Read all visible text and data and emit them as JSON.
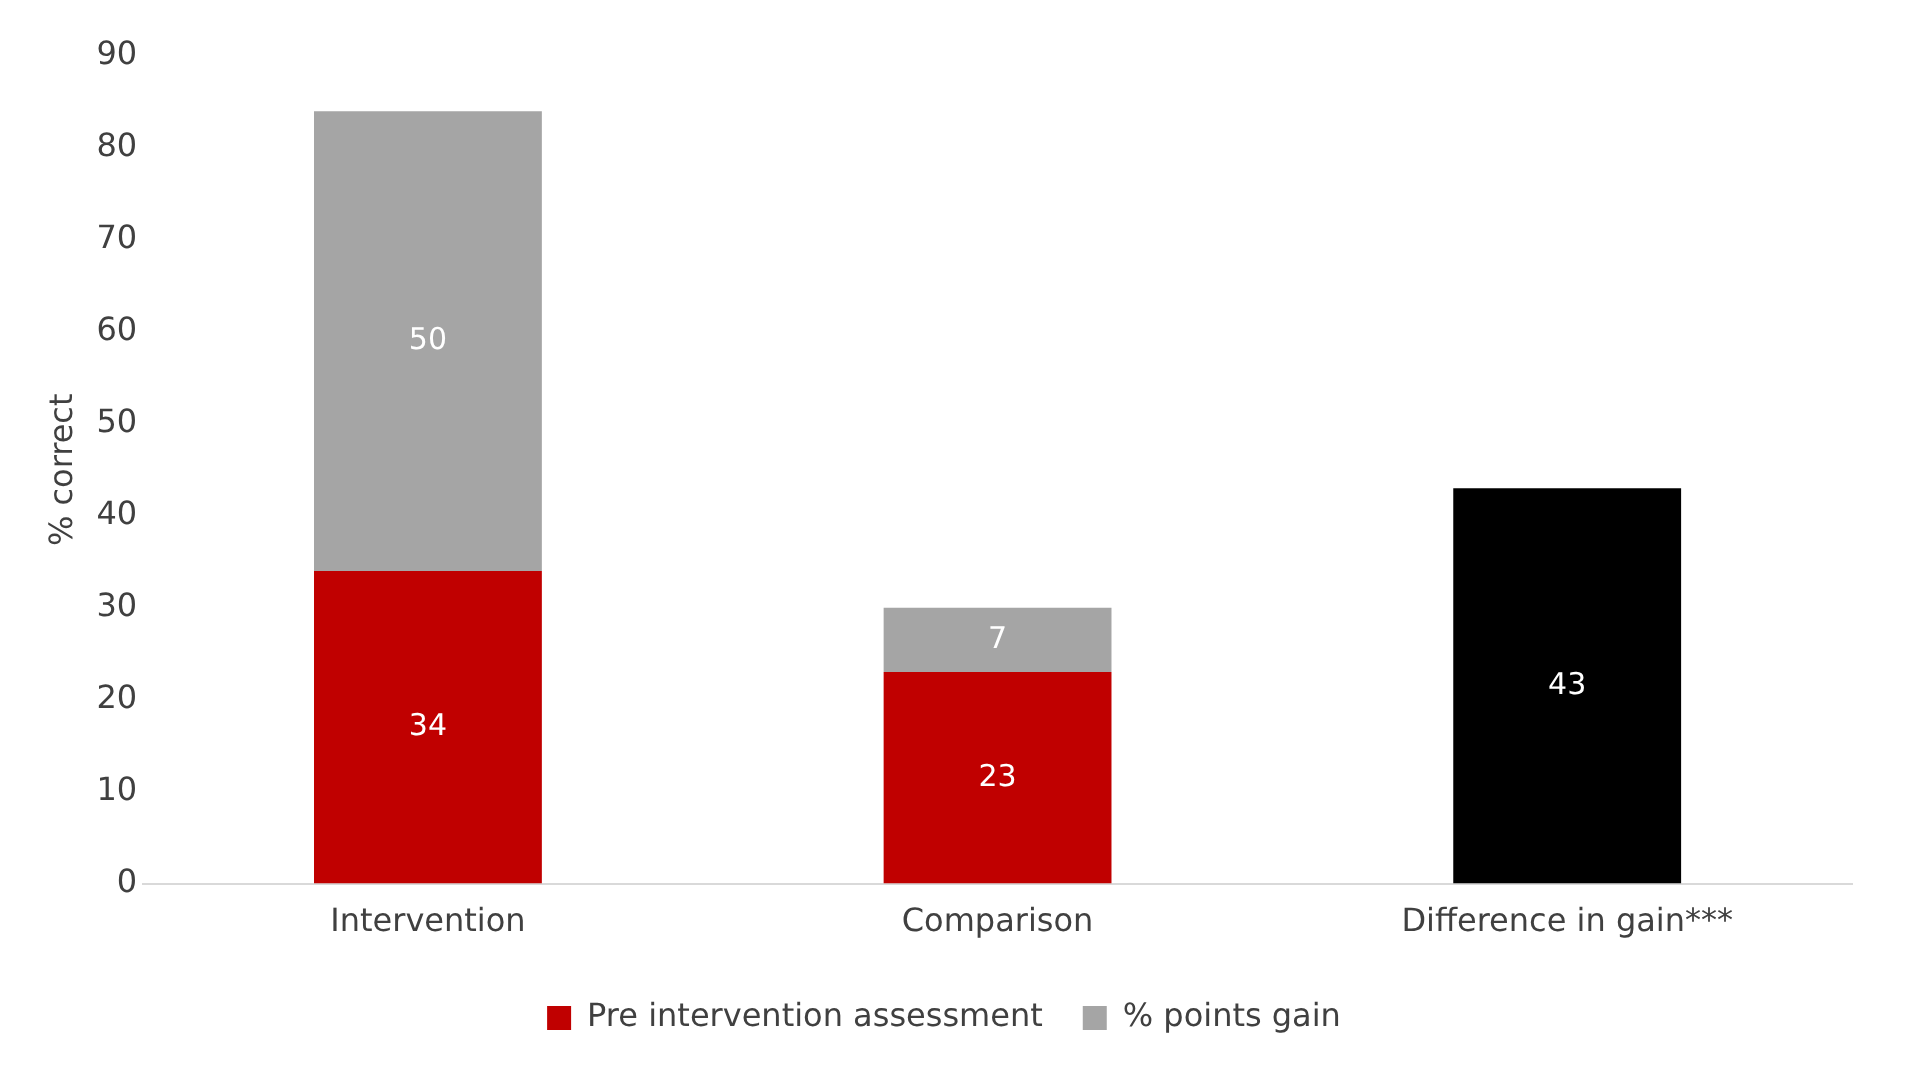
{
  "chart_data": {
    "type": "bar",
    "ylabel": "% correct",
    "categories": [
      "Intervention",
      "Comparison",
      "Difference in gain***"
    ],
    "stacked": true,
    "data_labels": true,
    "grid": false,
    "legend": "bottom",
    "ylim": [
      0,
      90
    ],
    "yticks": [
      0,
      10,
      20,
      30,
      40,
      50,
      60,
      70,
      80,
      90
    ],
    "series": [
      {
        "name": "Pre intervention assessment",
        "color": "#c00000",
        "values": [
          34,
          23,
          null
        ]
      },
      {
        "name": "% points gain",
        "color": "#a5a5a5",
        "values": [
          50,
          7,
          null
        ]
      },
      {
        "color": "#000000",
        "values": [
          null,
          null,
          43
        ]
      }
    ]
  }
}
